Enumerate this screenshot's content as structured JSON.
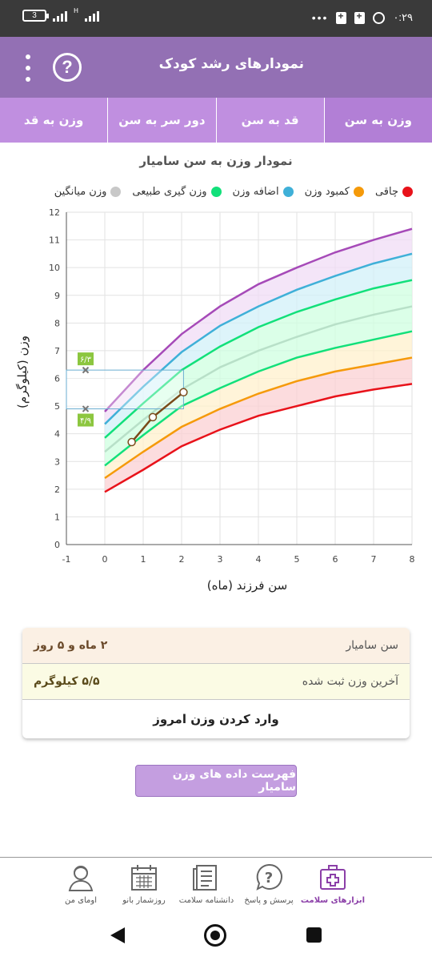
{
  "status_bar": {
    "battery": "3",
    "network": "H",
    "network_sub": "4G",
    "time": "۰:۲۹"
  },
  "app_bar": {
    "title": "نمودارهای رشد کودک",
    "help_label": "?"
  },
  "tabs": [
    {
      "label": "وزن به سن",
      "active": true
    },
    {
      "label": "قد به سن",
      "active": false
    },
    {
      "label": "دور سر به سن",
      "active": false
    },
    {
      "label": "وزن به قد",
      "active": false
    }
  ],
  "chart_title": "نمودار وزن به سن سامیار",
  "legend": [
    {
      "label": "چاقی",
      "color": "#e8121a"
    },
    {
      "label": "کمبود وزن",
      "color": "#f59a0a"
    },
    {
      "label": "اضافه وزن",
      "color": "#3fb0d8"
    },
    {
      "label": "وزن گیری طبیعی",
      "color": "#12e07a"
    },
    {
      "label": "وزن میانگین",
      "color": "#c8c8c8"
    }
  ],
  "chart_data": {
    "type": "line",
    "xlabel": "سن فرزند (ماه)",
    "ylabel": "وزن (کیلوگرم)",
    "xlim": [
      -1,
      8
    ],
    "ylim": [
      0,
      12
    ],
    "xticks": [
      -1,
      0,
      1,
      2,
      3,
      4,
      5,
      6,
      7,
      8
    ],
    "yticks": [
      0,
      1,
      2,
      3,
      4,
      5,
      6,
      7,
      8,
      9,
      10,
      11,
      12
    ],
    "grid": true,
    "x": [
      0,
      1,
      2,
      3,
      4,
      5,
      6,
      7,
      8
    ],
    "series": [
      {
        "color": "#e8121a",
        "values": [
          1.9,
          2.7,
          3.55,
          4.15,
          4.65,
          5.0,
          5.35,
          5.6,
          5.8
        ]
      },
      {
        "color": "#f59a0a",
        "values": [
          2.4,
          3.35,
          4.25,
          4.9,
          5.45,
          5.9,
          6.25,
          6.5,
          6.75
        ]
      },
      {
        "color": "#12e07a",
        "values": [
          2.85,
          3.95,
          5.0,
          5.65,
          6.25,
          6.75,
          7.1,
          7.4,
          7.7
        ]
      },
      {
        "color": "#b8e0c8",
        "values": [
          3.35,
          4.5,
          5.6,
          6.4,
          7.0,
          7.5,
          7.95,
          8.3,
          8.6
        ]
      },
      {
        "color": "#12e07a",
        "values": [
          3.85,
          5.1,
          6.3,
          7.15,
          7.85,
          8.4,
          8.85,
          9.25,
          9.55
        ]
      },
      {
        "color": "#3fb0d8",
        "values": [
          4.35,
          5.7,
          6.95,
          7.9,
          8.6,
          9.2,
          9.7,
          10.15,
          10.5
        ]
      },
      {
        "color": "#a64ab8",
        "values": [
          4.8,
          6.3,
          7.6,
          8.6,
          9.4,
          10.0,
          10.55,
          11.0,
          11.4
        ]
      }
    ],
    "child_series": {
      "color": "#7a4a1a",
      "x": [
        0.7,
        1.25,
        2.05
      ],
      "y": [
        3.7,
        4.6,
        5.5
      ]
    },
    "range_markers": {
      "x": -0.5,
      "upper": 6.3,
      "lower": 4.9,
      "upper_label": "۶/۳",
      "lower_label": "۴/۹",
      "box_right_x": 2.05
    }
  },
  "info_card": {
    "age_label": "سن سامیار",
    "age_value": "۲ ماه و ۵ روز",
    "weight_label": "آخرین وزن ثبت شده",
    "weight_value": "۵/۵ کیلوگرم",
    "enter_weight": "وارد کردن وزن امروز"
  },
  "list_button": "فهرست داده های وزن سامیار",
  "bottom_nav": [
    {
      "label": "ابزارهای سلامت",
      "icon": "medical-kit-icon",
      "active": true
    },
    {
      "label": "پرسش و پاسخ",
      "icon": "question-bubble-icon",
      "active": false
    },
    {
      "label": "دانشنامه سلامت",
      "icon": "encyclopedia-icon",
      "active": false
    },
    {
      "label": "روزشمار بانو",
      "icon": "calendar-icon",
      "active": false
    },
    {
      "label": "اومای من",
      "icon": "profile-icon",
      "active": false
    }
  ]
}
